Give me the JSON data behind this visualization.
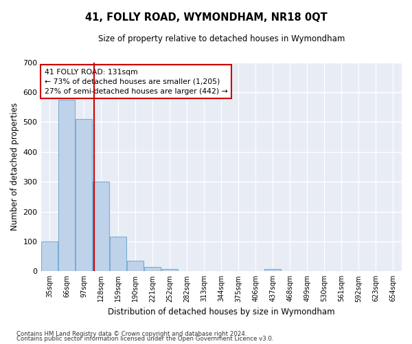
{
  "title1": "41, FOLLY ROAD, WYMONDHAM, NR18 0QT",
  "title2": "Size of property relative to detached houses in Wymondham",
  "xlabel": "Distribution of detached houses by size in Wymondham",
  "ylabel": "Number of detached properties",
  "footer1": "Contains HM Land Registry data © Crown copyright and database right 2024.",
  "footer2": "Contains public sector information licensed under the Open Government Licence v3.0.",
  "categories": [
    "35sqm",
    "66sqm",
    "97sqm",
    "128sqm",
    "159sqm",
    "190sqm",
    "221sqm",
    "252sqm",
    "282sqm",
    "313sqm",
    "344sqm",
    "375sqm",
    "406sqm",
    "437sqm",
    "468sqm",
    "499sqm",
    "530sqm",
    "561sqm",
    "592sqm",
    "623sqm",
    "654sqm"
  ],
  "values": [
    100,
    575,
    510,
    300,
    115,
    35,
    15,
    8,
    0,
    0,
    0,
    0,
    0,
    8,
    0,
    0,
    0,
    0,
    0,
    0,
    0
  ],
  "bar_color": "#bed3ea",
  "bar_edge_color": "#7aadd4",
  "background_color": "#e8edf5",
  "grid_color": "#ffffff",
  "vline_color": "#cc0000",
  "annotation_line1": "41 FOLLY ROAD: 131sqm",
  "annotation_line2": "← 73% of detached houses are smaller (1,205)",
  "annotation_line3": "27% of semi-detached houses are larger (442) →",
  "annotation_box_color": "#ffffff",
  "annotation_box_edge": "#cc0000",
  "ylim": [
    0,
    700
  ],
  "yticks": [
    0,
    100,
    200,
    300,
    400,
    500,
    600,
    700
  ],
  "vline_pos": 2.6
}
